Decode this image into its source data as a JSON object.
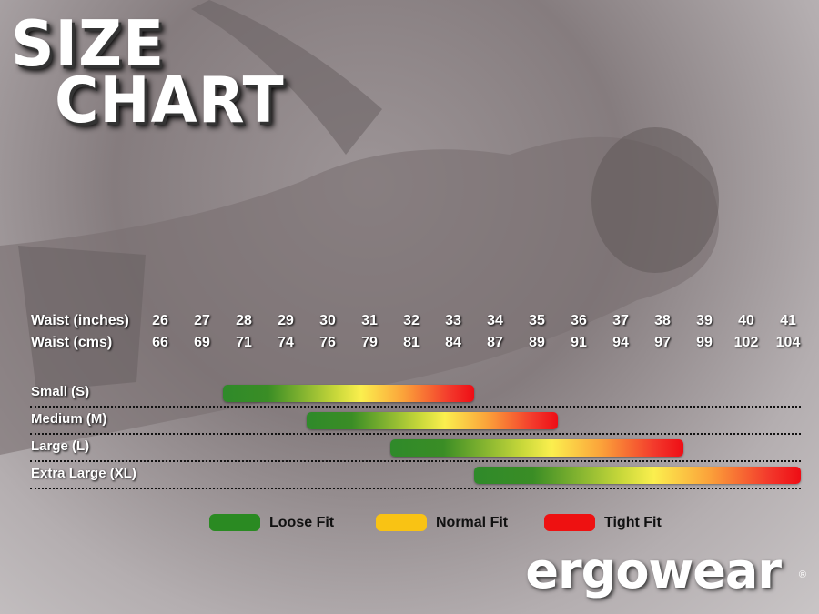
{
  "title": {
    "line1": "SIZE",
    "line2": "CHART"
  },
  "brand": {
    "logo": "ergowear",
    "registered": "®"
  },
  "chart_data": {
    "type": "range-bar",
    "axis_rows": [
      {
        "label": "Waist (inches)",
        "ticks": [
          "26",
          "27",
          "28",
          "29",
          "30",
          "31",
          "32",
          "33",
          "34",
          "35",
          "36",
          "37",
          "38",
          "39",
          "40",
          "41"
        ]
      },
      {
        "label": "Waist (cms)",
        "ticks": [
          "66",
          "69",
          "71",
          "74",
          "76",
          "79",
          "81",
          "84",
          "87",
          "89",
          "91",
          "94",
          "97",
          "99",
          "102",
          "104"
        ]
      }
    ],
    "xlim": [
      26,
      41
    ],
    "series": [
      {
        "name": "Small (S)",
        "start": 27.5,
        "end": 33.5
      },
      {
        "name": "Medium (M)",
        "start": 29.5,
        "end": 35.5
      },
      {
        "name": "Large (L)",
        "start": 31.5,
        "end": 38.5
      },
      {
        "name": "Extra Large (XL)",
        "start": 33.5,
        "end": 41.5
      }
    ],
    "legend": [
      {
        "label": "Loose Fit",
        "color": "#2a8a22"
      },
      {
        "label": "Normal Fit",
        "color": "#f9c314"
      },
      {
        "label": "Tight Fit",
        "color": "#ee1111"
      }
    ],
    "legend_position": "bottom"
  }
}
